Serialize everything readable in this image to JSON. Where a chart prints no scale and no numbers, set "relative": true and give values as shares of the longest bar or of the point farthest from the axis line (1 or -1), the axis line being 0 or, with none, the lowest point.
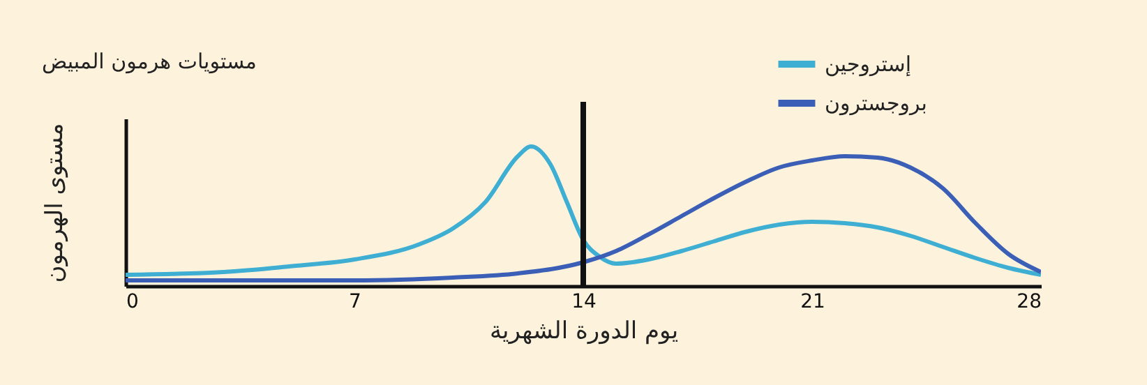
{
  "chart_data": {
    "type": "line",
    "title": "مستويات هرمون المبيض",
    "xlabel": "يوم الدورة الشهرية",
    "ylabel": "مستوى الهرمون",
    "relative": true,
    "x": [
      0,
      3,
      5,
      7,
      9,
      10,
      11,
      12,
      12.4,
      13,
      13.5,
      14,
      14.5,
      15,
      16,
      17,
      18,
      19,
      20,
      21,
      22,
      23,
      24,
      25,
      26,
      27,
      28
    ],
    "series": [
      {
        "name": "إستروجين",
        "color": "#3eaed3",
        "values": [
          0.08,
          0.1,
          0.14,
          0.19,
          0.3,
          0.41,
          0.6,
          0.93,
          1.0,
          0.87,
          0.6,
          0.33,
          0.21,
          0.16,
          0.19,
          0.25,
          0.32,
          0.39,
          0.44,
          0.46,
          0.45,
          0.42,
          0.36,
          0.28,
          0.2,
          0.13,
          0.08
        ]
      },
      {
        "name": "بروجسترون",
        "color": "#3b5fb6",
        "x": [
          0,
          7,
          10,
          12,
          14,
          15,
          16,
          17,
          18,
          19,
          20,
          21,
          22,
          23,
          24,
          25,
          26,
          27,
          28
        ],
        "values": [
          0.04,
          0.04,
          0.06,
          0.09,
          0.17,
          0.25,
          0.37,
          0.5,
          0.63,
          0.75,
          0.85,
          0.9,
          0.93,
          0.92,
          0.85,
          0.7,
          0.45,
          0.23,
          0.1
        ]
      }
    ],
    "xlim": [
      0,
      28
    ],
    "xticks": [
      0,
      7,
      14,
      21,
      28
    ],
    "ref_lines": [
      {
        "axis": "x",
        "value": 14,
        "color": "#111111"
      }
    ],
    "legend": "top right"
  }
}
